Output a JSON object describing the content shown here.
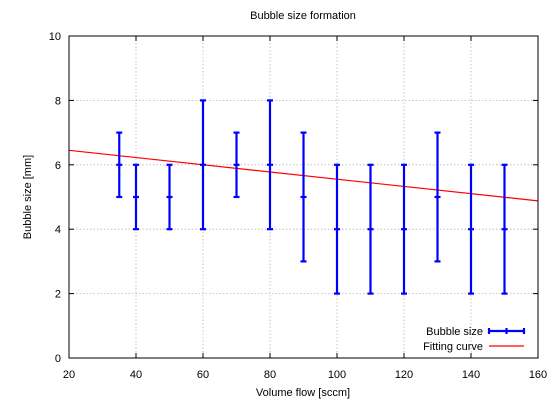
{
  "chart_data": {
    "type": "scatter",
    "title": "Bubble size formation",
    "xlabel": "Volume flow [sccm]",
    "ylabel": "Bubble size [mm]",
    "xlim": [
      20,
      160
    ],
    "ylim": [
      0,
      10
    ],
    "xticks": [
      20,
      40,
      60,
      80,
      100,
      120,
      140,
      160
    ],
    "yticks": [
      0,
      2,
      4,
      6,
      8,
      10
    ],
    "grid": true,
    "legend_position": "bottom-right",
    "series": [
      {
        "name": "Bubble size",
        "kind": "errorbar",
        "color": "#0000ff",
        "points": [
          {
            "x": 35,
            "y": 6,
            "ymin": 5,
            "ymax": 7
          },
          {
            "x": 40,
            "y": 5,
            "ymin": 4,
            "ymax": 6
          },
          {
            "x": 50,
            "y": 5,
            "ymin": 4,
            "ymax": 6
          },
          {
            "x": 60,
            "y": 6,
            "ymin": 4,
            "ymax": 8
          },
          {
            "x": 70,
            "y": 6,
            "ymin": 5,
            "ymax": 7
          },
          {
            "x": 80,
            "y": 6,
            "ymin": 4,
            "ymax": 8
          },
          {
            "x": 90,
            "y": 5,
            "ymin": 3,
            "ymax": 7
          },
          {
            "x": 100,
            "y": 4,
            "ymin": 2,
            "ymax": 6
          },
          {
            "x": 110,
            "y": 4,
            "ymin": 2,
            "ymax": 6
          },
          {
            "x": 120,
            "y": 4,
            "ymin": 2,
            "ymax": 6
          },
          {
            "x": 130,
            "y": 5,
            "ymin": 3,
            "ymax": 7
          },
          {
            "x": 140,
            "y": 4,
            "ymin": 2,
            "ymax": 6
          },
          {
            "x": 150,
            "y": 4,
            "ymin": 2,
            "ymax": 6
          }
        ]
      },
      {
        "name": "Fitting curve",
        "kind": "line",
        "color": "#ff0000",
        "x": [
          20,
          160
        ],
        "y": [
          6.45,
          4.88
        ]
      }
    ]
  }
}
